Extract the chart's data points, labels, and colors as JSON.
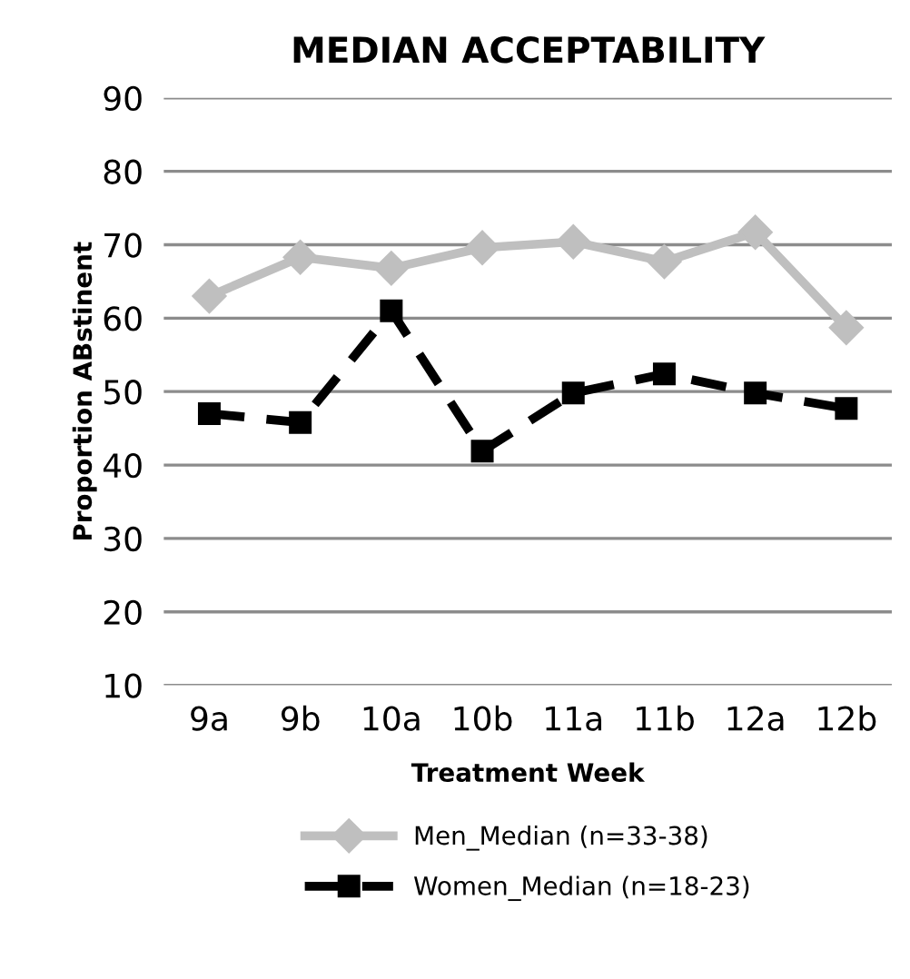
{
  "chart_data": {
    "type": "line",
    "title": "MEDIAN ACCEPTABILITY",
    "xlabel": "Treatment Week",
    "ylabel": "Proportion ABstinent",
    "categories": [
      "9a",
      "9b",
      "10a",
      "10b",
      "11a",
      "11b",
      "12a",
      "12b"
    ],
    "series": [
      {
        "name": "Men_Median (n=33-38)",
        "color": "#bfbfbf",
        "marker": "diamond",
        "line_style": "solid",
        "values": [
          63.0,
          68.3,
          66.8,
          69.6,
          70.4,
          67.7,
          71.7,
          58.7
        ]
      },
      {
        "name": "Women_Median (n=18-23)",
        "color": "#000000",
        "marker": "square",
        "line_style": "dashed",
        "values": [
          47.0,
          45.8,
          61.0,
          41.9,
          49.8,
          52.4,
          49.8,
          47.7
        ]
      }
    ],
    "ylim": [
      10,
      90
    ],
    "yticks": [
      10,
      20,
      30,
      40,
      50,
      60,
      70,
      80,
      90
    ],
    "grid": "y",
    "legend": "bottom"
  }
}
